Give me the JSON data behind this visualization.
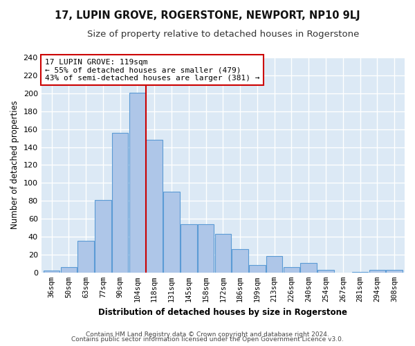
{
  "title": "17, LUPIN GROVE, ROGERSTONE, NEWPORT, NP10 9LJ",
  "subtitle": "Size of property relative to detached houses in Rogerstone",
  "xlabel": "Distribution of detached houses by size in Rogerstone",
  "ylabel": "Number of detached properties",
  "bar_labels": [
    "36sqm",
    "50sqm",
    "63sqm",
    "77sqm",
    "90sqm",
    "104sqm",
    "118sqm",
    "131sqm",
    "145sqm",
    "158sqm",
    "172sqm",
    "186sqm",
    "199sqm",
    "213sqm",
    "226sqm",
    "240sqm",
    "254sqm",
    "267sqm",
    "281sqm",
    "294sqm",
    "308sqm"
  ],
  "bar_values": [
    2,
    6,
    35,
    81,
    156,
    201,
    148,
    90,
    54,
    54,
    43,
    26,
    8,
    18,
    6,
    11,
    3,
    0,
    1,
    3,
    3
  ],
  "bar_color": "#aec6e8",
  "bar_edge_color": "#5b9bd5",
  "vline_x_index": 6,
  "vline_color": "#cc0000",
  "annotation_line1": "17 LUPIN GROVE: 119sqm",
  "annotation_line2": "← 55% of detached houses are smaller (479)",
  "annotation_line3": "43% of semi-detached houses are larger (381) →",
  "annotation_box_color": "#ffffff",
  "annotation_box_edge": "#cc0000",
  "ylim": [
    0,
    240
  ],
  "yticks": [
    0,
    20,
    40,
    60,
    80,
    100,
    120,
    140,
    160,
    180,
    200,
    220,
    240
  ],
  "bg_color": "#dce9f5",
  "grid_color": "#ffffff",
  "footer_line1": "Contains HM Land Registry data © Crown copyright and database right 2024.",
  "footer_line2": "Contains public sector information licensed under the Open Government Licence v3.0.",
  "fig_bg_color": "#ffffff",
  "title_fontsize": 10.5,
  "subtitle_fontsize": 9.5
}
